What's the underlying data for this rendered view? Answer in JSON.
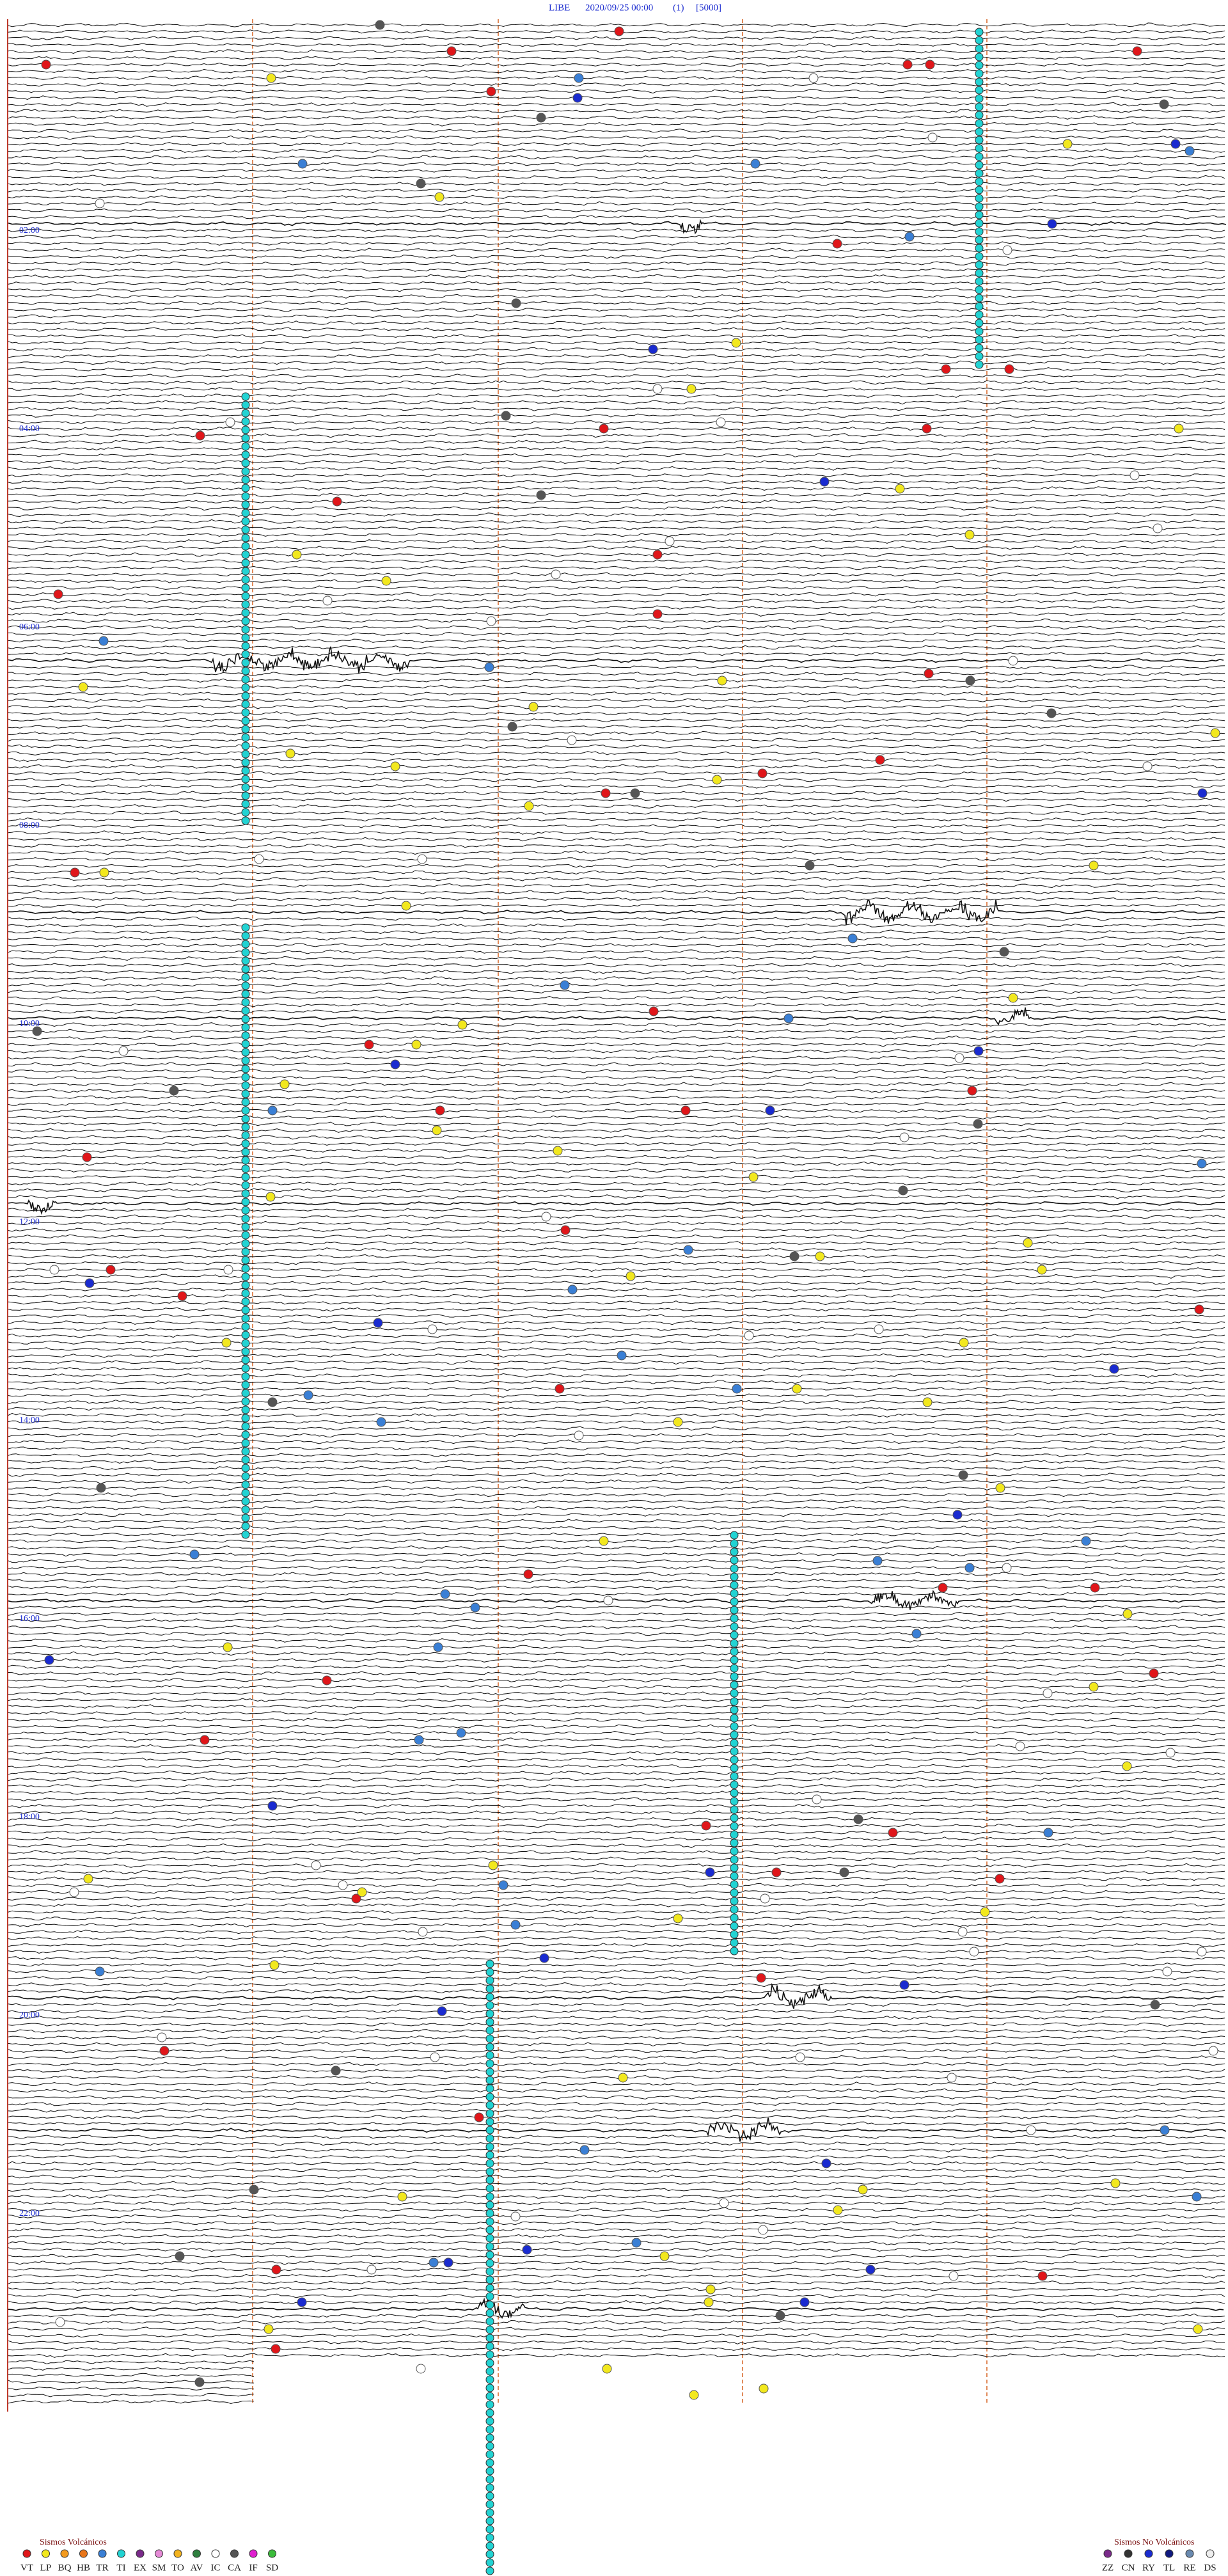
{
  "header": {
    "station": "LIBE",
    "datetime": "2020/09/25 00:00",
    "code": "(1)",
    "scale": "[5000]"
  },
  "hour_labels": [
    "02:00",
    "04:00",
    "06:00",
    "08:00",
    "10:00",
    "12:00",
    "14:00",
    "16:00",
    "18:00",
    "20:00",
    "22:00"
  ],
  "legend_volcanic": {
    "title": "Sismos Volcánicos",
    "codes": [
      "VT",
      "LP",
      "BQ",
      "HB",
      "TR",
      "TI",
      "EX",
      "SM",
      "TO",
      "AV",
      "IC",
      "CA",
      "IF",
      "SD"
    ]
  },
  "legend_non_volcanic": {
    "title": "Sismos No Volcánicos",
    "codes": [
      "ZZ",
      "CN",
      "RY",
      "TL",
      "RE",
      "DS"
    ]
  }
}
